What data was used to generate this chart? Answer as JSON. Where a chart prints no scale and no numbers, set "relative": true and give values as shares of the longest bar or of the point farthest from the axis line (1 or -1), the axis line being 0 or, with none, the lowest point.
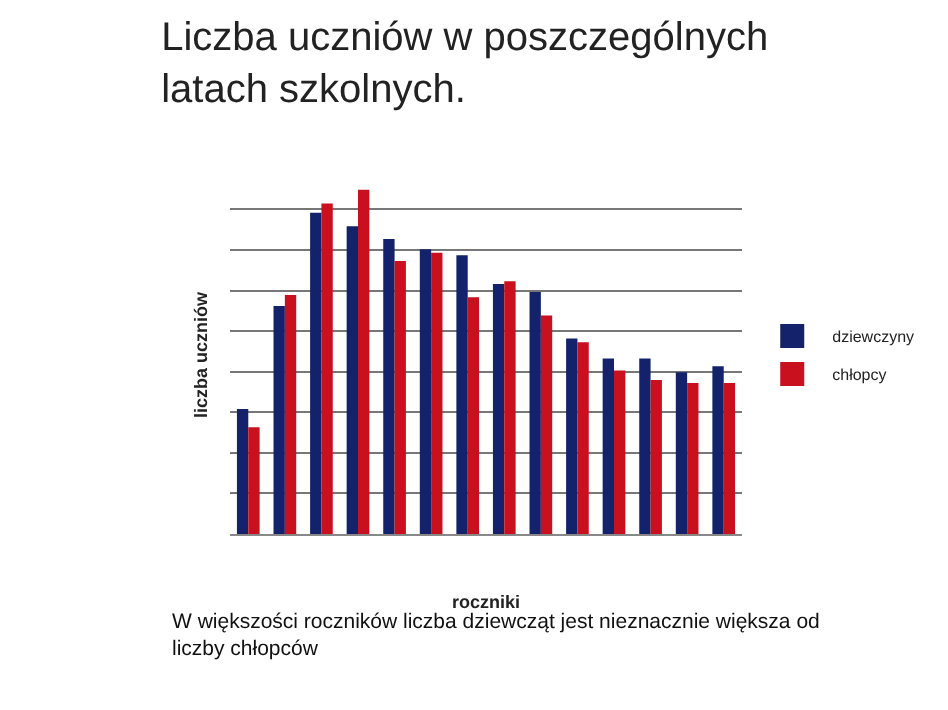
{
  "chart_data": {
    "type": "bar",
    "title": "Liczba uczniów w poszczególnych latach szkolnych.",
    "xlabel": "roczniki",
    "ylabel": "liczba uczniów",
    "relative": true,
    "grid": "y",
    "legend": "right",
    "categories": [
      null,
      null,
      null,
      null,
      null,
      null,
      null,
      null,
      null,
      null,
      null,
      null,
      null,
      null
    ],
    "series": [
      {
        "name": "dziewczyny",
        "color": "#14226b",
        "values": [
          0.363,
          0.662,
          0.933,
          0.894,
          0.857,
          0.827,
          0.81,
          0.726,
          0.703,
          0.568,
          0.51,
          0.51,
          0.47,
          0.487
        ]
      },
      {
        "name": "chłopcy",
        "color": "#c8101e",
        "values": [
          0.31,
          0.694,
          0.96,
          1,
          0.793,
          0.817,
          0.688,
          0.734,
          0.635,
          0.557,
          0.475,
          0.447,
          0.439,
          0.439
        ]
      }
    ],
    "annotations": [
      "W większości roczników liczba dziewcząt jest nieznacznie większa od liczby chłopców"
    ]
  }
}
